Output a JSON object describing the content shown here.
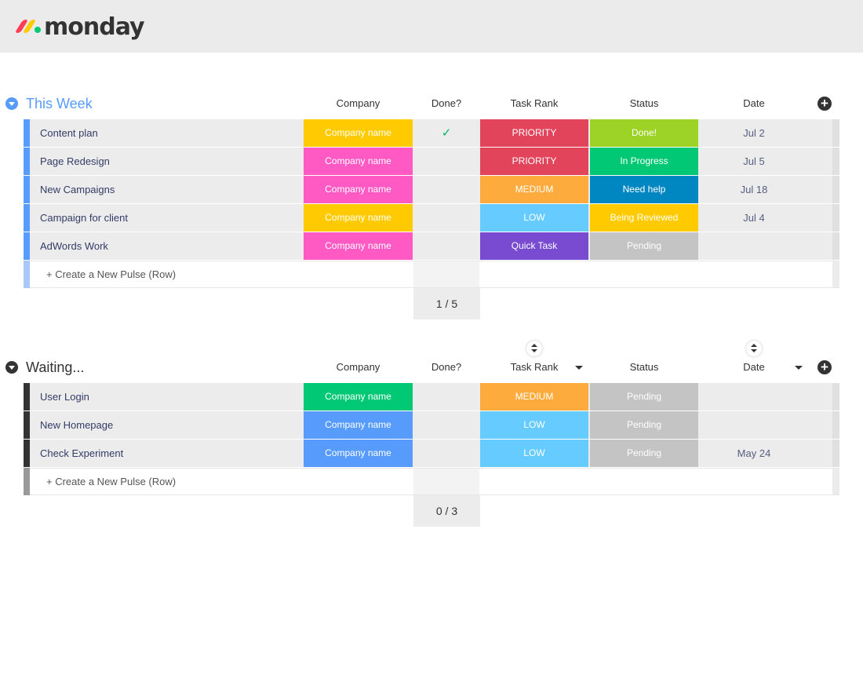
{
  "app": {
    "logo_text": "monday",
    "logo_colors": [
      "#ff3d57",
      "#ffcb00",
      "#00ca72"
    ]
  },
  "colors": {
    "this_week_accent": "#579bfc",
    "waiting_accent": "#333333",
    "yellow": "#ffcb00",
    "pink": "#ff5ac4",
    "green_company": "#00c875",
    "blue_company": "#579bfc",
    "priority_red": "#e2445c",
    "medium_orange": "#fdab3d",
    "low_blue": "#66ccff",
    "quick_purple": "#784bd1",
    "done_green": "#9cd326",
    "progress_green": "#00c875",
    "needhelp_blue": "#0086c0",
    "pending_grey": "#c4c4c4"
  },
  "columns": {
    "company": "Company",
    "done": "Done?",
    "rank": "Task Rank",
    "status": "Status",
    "date": "Date"
  },
  "add_column_icon": "plus-circle-icon",
  "groups": [
    {
      "title": "This Week",
      "rows": [
        {
          "name": "Content plan",
          "company": "Company name",
          "done": "✓",
          "rank": "PRIORITY",
          "status": "Done!",
          "date": "Jul 2"
        },
        {
          "name": "Page Redesign",
          "company": "Company name",
          "done": "",
          "rank": "PRIORITY",
          "status": "In Progress",
          "date": "Jul 5"
        },
        {
          "name": "New Campaigns",
          "company": "Company name",
          "done": "",
          "rank": "MEDIUM",
          "status": "Need help",
          "date": "Jul 18"
        },
        {
          "name": "Campaign for client",
          "company": "Company name",
          "done": "",
          "rank": "LOW",
          "status": "Being Reviewed",
          "date": "Jul 4"
        },
        {
          "name": "AdWords Work",
          "company": "Company name",
          "done": "",
          "rank": "Quick Task",
          "status": "Pending",
          "date": ""
        }
      ],
      "create_label": "+ Create a New Pulse (Row)",
      "summary": "1 / 5"
    },
    {
      "title": "Waiting...",
      "rows": [
        {
          "name": "User Login",
          "company": "Company name",
          "done": "",
          "rank": "MEDIUM",
          "status": "Pending",
          "date": ""
        },
        {
          "name": "New Homepage",
          "company": "Company name",
          "done": "",
          "rank": "LOW",
          "status": "Pending",
          "date": ""
        },
        {
          "name": "Check Experiment",
          "company": "Company name",
          "done": "",
          "rank": "LOW",
          "status": "Pending",
          "date": "May 24"
        }
      ],
      "create_label": "+ Create a New Pulse (Row)",
      "summary": "0 / 3"
    }
  ]
}
